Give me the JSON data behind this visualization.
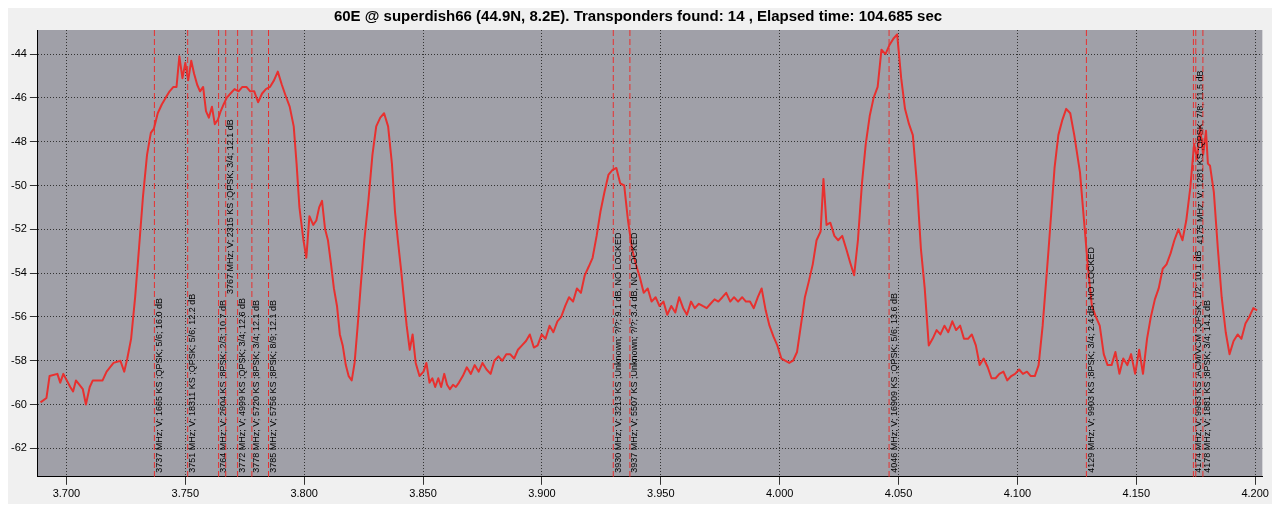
{
  "chart_data": {
    "type": "line",
    "title": "60E @ superdish66 (44.9N, 8.2E). Transponders found: 14 , Elapsed time: 104.685 sec",
    "xlim": [
      3.688,
      4.203
    ],
    "ylim": [
      -63.3,
      -42.9
    ],
    "xticks": [
      {
        "value": 3.7,
        "label": "3.700"
      },
      {
        "value": 3.75,
        "label": "3.750"
      },
      {
        "value": 3.8,
        "label": "3.800"
      },
      {
        "value": 3.85,
        "label": "3.850"
      },
      {
        "value": 3.9,
        "label": "3.900"
      },
      {
        "value": 3.95,
        "label": "3.950"
      },
      {
        "value": 4.0,
        "label": "4.000"
      },
      {
        "value": 4.05,
        "label": "4.050"
      },
      {
        "value": 4.1,
        "label": "4.100"
      },
      {
        "value": 4.15,
        "label": "4.150"
      },
      {
        "value": 4.2,
        "label": "4.200"
      }
    ],
    "yticks": [
      -44,
      -46,
      -48,
      -50,
      -52,
      -54,
      -56,
      -58,
      -60,
      -62
    ],
    "grid": true,
    "legend": false,
    "marker": "none",
    "line_style": "solid",
    "series": [
      {
        "color": "#e8302f",
        "x": [
          3.6891,
          3.6916,
          3.6929,
          3.6962,
          3.6974,
          3.6987,
          3.7016,
          3.7028,
          3.704,
          3.7069,
          3.7082,
          3.7098,
          3.7111,
          3.7152,
          3.7169,
          3.7198,
          3.7227,
          3.7243,
          3.7256,
          3.7272,
          3.7289,
          3.7305,
          3.7322,
          3.7339,
          3.7355,
          3.7368,
          3.7384,
          3.7401,
          3.7417,
          3.7434,
          3.745,
          3.7463,
          3.7475,
          3.7488,
          3.75,
          3.7512,
          3.7525,
          3.7537,
          3.755,
          3.7562,
          3.7575,
          3.7587,
          3.7599,
          3.7612,
          3.7624,
          3.7637,
          3.7649,
          3.7661,
          3.7674,
          3.769,
          3.7707,
          3.7724,
          3.774,
          3.7757,
          3.7773,
          3.779,
          3.7806,
          3.7823,
          3.7839,
          3.7856,
          3.7873,
          3.7889,
          3.7906,
          3.7922,
          3.7939,
          3.7956,
          3.7968,
          3.798,
          3.7997,
          3.8009,
          3.8022,
          3.8038,
          3.8051,
          3.8063,
          3.8075,
          3.8088,
          3.81,
          3.8113,
          3.8125,
          3.8138,
          3.815,
          3.8162,
          3.8175,
          3.8187,
          3.82,
          3.8212,
          3.8225,
          3.8237,
          3.8253,
          3.827,
          3.8287,
          3.8303,
          3.832,
          3.8336,
          3.8353,
          3.8369,
          3.8382,
          3.8394,
          3.8407,
          3.8419,
          3.8431,
          3.8444,
          3.8456,
          3.8469,
          3.8485,
          3.8502,
          3.8514,
          3.8527,
          3.8539,
          3.8551,
          3.8564,
          3.8576,
          3.8589,
          3.8601,
          3.8613,
          3.8626,
          3.8638,
          3.8651,
          3.8667,
          3.8684,
          3.8701,
          3.8717,
          3.8734,
          3.875,
          3.8767,
          3.8784,
          3.88,
          3.8817,
          3.8833,
          3.885,
          3.8866,
          3.8883,
          3.8899,
          3.8916,
          3.8933,
          3.8949,
          3.8966,
          3.8982,
          3.8999,
          3.9015,
          3.9032,
          3.9048,
          3.9065,
          3.9081,
          3.9098,
          3.9114,
          3.9131,
          3.9147,
          3.9164,
          3.918,
          3.9197,
          3.9213,
          3.923,
          3.9246,
          3.9263,
          3.928,
          3.9296,
          3.9313,
          3.9329,
          3.9346,
          3.9362,
          3.9379,
          3.9395,
          3.9412,
          3.9428,
          3.9445,
          3.9461,
          3.9478,
          3.9494,
          3.9511,
          3.9527,
          3.9544,
          3.9561,
          3.9577,
          3.9594,
          3.961,
          3.9627,
          3.9643,
          3.966,
          3.9676,
          3.9693,
          3.9709,
          3.9726,
          3.9742,
          3.9759,
          3.9775,
          3.9792,
          3.9808,
          3.9825,
          3.9842,
          3.9858,
          3.9875,
          3.9891,
          3.9908,
          3.9924,
          3.9941,
          3.9957,
          3.9974,
          3.999,
          4.0007,
          4.0023,
          4.004,
          4.0056,
          4.0073,
          4.0089,
          4.0106,
          4.0122,
          4.0139,
          4.0155,
          4.0172,
          4.0184,
          4.0197,
          4.0213,
          4.023,
          4.0246,
          4.0263,
          4.028,
          4.0296,
          4.0313,
          4.0329,
          4.0346,
          4.0362,
          4.0379,
          4.0395,
          4.0412,
          4.0428,
          4.0445,
          4.0461,
          4.0478,
          4.0494,
          4.0511,
          4.0527,
          4.0544,
          4.056,
          4.0577,
          4.0594,
          4.061,
          4.0627,
          4.0643,
          4.066,
          4.0676,
          4.0693,
          4.0709,
          4.0726,
          4.0742,
          4.0759,
          4.0775,
          4.0792,
          4.0808,
          4.0825,
          4.0841,
          4.0858,
          4.0875,
          4.0891,
          4.0908,
          4.0924,
          4.0941,
          4.0957,
          4.0974,
          4.099,
          4.1007,
          4.1023,
          4.104,
          4.1056,
          4.1073,
          4.1089,
          4.1106,
          4.1131,
          4.1156,
          4.1172,
          4.1189,
          4.1205,
          4.1222,
          4.1239,
          4.1263,
          4.128,
          4.1297,
          4.1313,
          4.133,
          4.1346,
          4.1363,
          4.1379,
          4.1396,
          4.1412,
          4.1429,
          4.1445,
          4.1462,
          4.1478,
          4.1495,
          4.1512,
          4.1528,
          4.1545,
          4.1561,
          4.1578,
          4.1594,
          4.1611,
          4.1627,
          4.1644,
          4.166,
          4.1677,
          4.1694,
          4.171,
          4.1727,
          4.1743,
          4.1756,
          4.1768,
          4.1781,
          4.1793,
          4.1801,
          4.181,
          4.1826,
          4.1843,
          4.1859,
          4.1876,
          4.1892,
          4.1909,
          4.1926,
          4.1942,
          4.1959,
          4.1975,
          4.1992,
          4.2008
        ],
        "values": [
          -59.9,
          -59.7,
          -58.7,
          -58.6,
          -59.0,
          -58.6,
          -59.2,
          -59.4,
          -58.9,
          -59.3,
          -60.0,
          -59.2,
          -58.9,
          -58.9,
          -58.5,
          -58.1,
          -58.0,
          -58.5,
          -57.9,
          -57.0,
          -55.1,
          -52.9,
          -50.5,
          -48.6,
          -47.6,
          -47.4,
          -46.7,
          -46.3,
          -46.0,
          -45.7,
          -45.5,
          -45.5,
          -44.1,
          -45.1,
          -44.4,
          -45.2,
          -44.3,
          -44.9,
          -45.4,
          -45.7,
          -45.5,
          -46.6,
          -46.9,
          -46.4,
          -47.2,
          -47.0,
          -46.6,
          -46.3,
          -46.0,
          -45.8,
          -45.6,
          -45.7,
          -45.5,
          -45.5,
          -45.7,
          -45.7,
          -46.2,
          -45.8,
          -45.6,
          -45.5,
          -45.2,
          -44.8,
          -45.4,
          -45.9,
          -46.4,
          -47.3,
          -49.0,
          -51.0,
          -52.5,
          -53.3,
          -51.4,
          -51.8,
          -51.6,
          -51.0,
          -50.7,
          -52.0,
          -52.5,
          -53.6,
          -54.7,
          -55.5,
          -56.8,
          -57.3,
          -58.2,
          -58.7,
          -58.9,
          -58.1,
          -56.4,
          -54.7,
          -52.5,
          -50.7,
          -48.6,
          -47.3,
          -46.9,
          -46.7,
          -47.3,
          -49.0,
          -51.2,
          -52.5,
          -53.8,
          -55.1,
          -56.4,
          -57.5,
          -56.8,
          -58.1,
          -58.7,
          -58.5,
          -58.1,
          -59.0,
          -58.8,
          -59.2,
          -58.8,
          -59.2,
          -58.6,
          -59.1,
          -59.3,
          -59.1,
          -59.2,
          -59.0,
          -58.7,
          -58.3,
          -58.6,
          -58.2,
          -58.5,
          -58.1,
          -58.4,
          -58.6,
          -58.0,
          -57.8,
          -58.0,
          -57.7,
          -57.7,
          -57.9,
          -57.5,
          -57.3,
          -57.1,
          -56.8,
          -57.4,
          -57.3,
          -56.8,
          -57.0,
          -56.4,
          -56.7,
          -56.2,
          -56.0,
          -55.5,
          -55.1,
          -55.3,
          -54.7,
          -54.9,
          -54.1,
          -53.7,
          -53.3,
          -52.3,
          -51.2,
          -50.3,
          -49.5,
          -49.3,
          -49.2,
          -49.9,
          -50.0,
          -51.6,
          -52.9,
          -53.6,
          -54.2,
          -54.9,
          -54.7,
          -55.3,
          -55.1,
          -55.5,
          -55.3,
          -55.9,
          -55.5,
          -55.8,
          -55.1,
          -55.6,
          -55.9,
          -55.3,
          -55.6,
          -55.4,
          -55.5,
          -55.6,
          -55.4,
          -55.2,
          -55.3,
          -55.1,
          -54.9,
          -55.3,
          -55.1,
          -55.3,
          -55.1,
          -55.3,
          -55.3,
          -55.6,
          -55.1,
          -54.7,
          -55.7,
          -56.4,
          -56.9,
          -57.3,
          -57.9,
          -58.0,
          -58.1,
          -58.0,
          -57.6,
          -56.4,
          -55.1,
          -54.4,
          -53.6,
          -52.5,
          -52.1,
          -49.7,
          -51.8,
          -51.7,
          -52.3,
          -52.5,
          -52.3,
          -52.9,
          -53.5,
          -54.1,
          -52.5,
          -49.9,
          -48.1,
          -46.8,
          -46.0,
          -45.5,
          -43.8,
          -44.0,
          -43.6,
          -43.3,
          -43.1,
          -45.1,
          -46.5,
          -47.2,
          -47.7,
          -49.9,
          -52.9,
          -54.7,
          -57.3,
          -57.0,
          -56.6,
          -56.8,
          -56.4,
          -56.7,
          -56.2,
          -56.6,
          -56.4,
          -57.0,
          -57.0,
          -56.8,
          -57.3,
          -58.2,
          -57.9,
          -58.3,
          -58.8,
          -58.8,
          -58.6,
          -58.5,
          -58.9,
          -58.7,
          -58.6,
          -58.4,
          -58.6,
          -58.5,
          -58.7,
          -58.7,
          -58.2,
          -56.4,
          -52.9,
          -49.2,
          -47.7,
          -47.0,
          -46.5,
          -46.7,
          -47.7,
          -49.4,
          -51.6,
          -53.8,
          -55.5,
          -56.0,
          -56.4,
          -57.7,
          -58.2,
          -58.2,
          -57.6,
          -58.6,
          -57.9,
          -58.2,
          -57.7,
          -58.6,
          -57.5,
          -58.6,
          -57.0,
          -56.0,
          -55.2,
          -54.7,
          -53.8,
          -53.6,
          -53.1,
          -52.5,
          -52.0,
          -52.5,
          -51.6,
          -50.1,
          -48.1,
          -48.8,
          -47.3,
          -48.6,
          -47.5,
          -49.0,
          -49.1,
          -50.3,
          -52.9,
          -55.1,
          -56.7,
          -57.7,
          -57.1,
          -56.8,
          -57.0,
          -56.3,
          -56.0,
          -55.6,
          -55.7
        ]
      }
    ],
    "ref_lines": [
      {
        "axis": "x",
        "value": 3.737,
        "label": "3737 MHz; V; 1665 KS ;QPSK; 5/6; 16.0 dB",
        "color": "#e8302f",
        "line_style": "dashed"
      },
      {
        "axis": "x",
        "value": 3.751,
        "label": "3751 MHz; V; 18311 KS ;QPSK; 5/6; 12.2 dB",
        "color": "#e8302f",
        "line_style": "dashed"
      },
      {
        "axis": "x",
        "value": 3.764,
        "label": "3764 MHz; V; 2604 KS ;8PSK; 2/3; 10.7 dB",
        "color": "#e8302f",
        "line_style": "dashed"
      },
      {
        "axis": "x",
        "value": 3.767,
        "label": "3767 MHz; V; 2315 KS ;QPSK; 3/4; 12.1 dB",
        "color": "#e8302f",
        "line_style": "dashed"
      },
      {
        "axis": "x",
        "value": 3.772,
        "label": "3772 MHz; V; 4999 KS ;QPSK; 3/4; 12.6 dB",
        "color": "#e8302f",
        "line_style": "dashed"
      },
      {
        "axis": "x",
        "value": 3.778,
        "label": "3778 MHz; V; 5720 KS ;8PSK; 3/4; 12.1 dB",
        "color": "#e8302f",
        "line_style": "dashed"
      },
      {
        "axis": "x",
        "value": 3.785,
        "label": "3785 MHz; V; 5756 KS ;8PSK; 8/9; 12.1 dB",
        "color": "#e8302f",
        "line_style": "dashed"
      },
      {
        "axis": "x",
        "value": 3.93,
        "label": "3930 MHz; V; 3213 KS ;Unknown; ?/?; 9.1 dB, NO LOCKED",
        "color": "#e8302f",
        "line_style": "dashed"
      },
      {
        "axis": "x",
        "value": 3.937,
        "label": "3937 MHz; V; 5507 KS ;Unknown; ?/?; 3.4 dB, NO LOCKED",
        "color": "#e8302f",
        "line_style": "dashed"
      },
      {
        "axis": "x",
        "value": 4.046,
        "label": "4046 MHz; V; 16909 KS ;QPSK; 5/6; 13.6 dB",
        "color": "#e8302f",
        "line_style": "dashed"
      },
      {
        "axis": "x",
        "value": 4.129,
        "label": "4129 MHz; V; 9903 KS ;8PSK; 3/4; 2.4 dB, NO LOCKED",
        "color": "#e8302f",
        "line_style": "dashed"
      },
      {
        "axis": "x",
        "value": 4.174,
        "label": "4174 MHz; V; 9983 KS ;ACM/VCM ;QPSK; 1/2; 10.1 dB",
        "color": "#e8302f",
        "line_style": "dashed"
      },
      {
        "axis": "x",
        "value": 4.175,
        "label": "4175 MHz; V; 1281 KS ;QPSK; 7/8; 11.5 dB",
        "color": "#e8302f",
        "line_style": "dashed"
      },
      {
        "axis": "x",
        "value": 4.178,
        "label": "4178 MHz; V; 1881 KS ;8PSK; 3/4; 14.1 dB",
        "color": "#e8302f",
        "line_style": "dashed"
      }
    ]
  }
}
